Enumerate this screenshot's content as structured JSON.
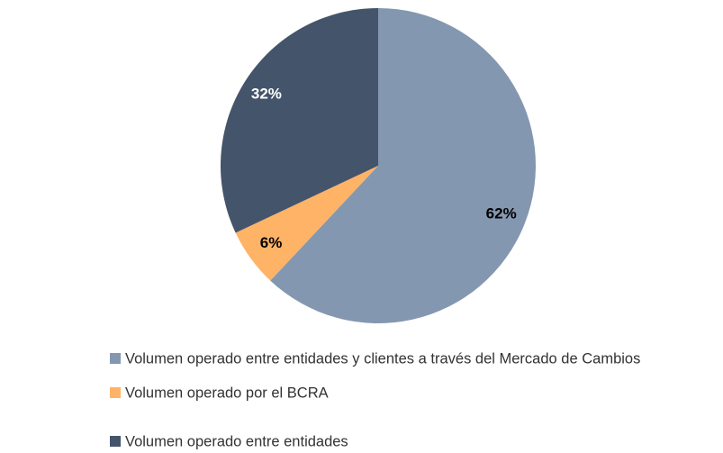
{
  "chart_data": {
    "type": "pie",
    "categories": [
      "Volumen operado entre entidades y clientes a través del Mercado de Cambios",
      "Volumen operado por el BCRA",
      "Volumen operado entre entidades"
    ],
    "values": [
      62,
      6,
      32
    ],
    "value_labels": [
      "62%",
      "6%",
      "32%"
    ],
    "colors": [
      "#8497b0",
      "#ffb366",
      "#44546a"
    ],
    "label_colors": [
      "#000000",
      "#000000",
      "#ffffff"
    ],
    "legend": "bottom-left"
  }
}
